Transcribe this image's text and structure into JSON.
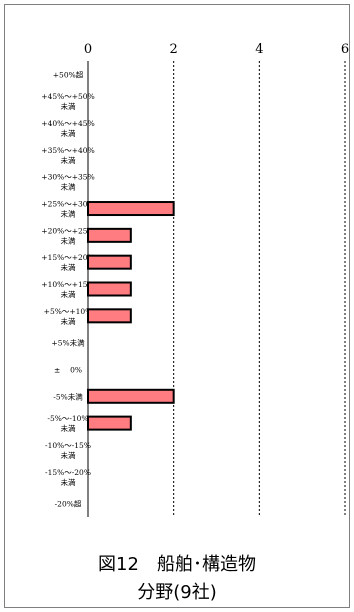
{
  "chart_data": {
    "type": "bar",
    "orientation": "horizontal",
    "categories": [
      [
        "+50%超"
      ],
      [
        "+45%～+50%",
        "未満"
      ],
      [
        "+40%～+45%",
        "未満"
      ],
      [
        "+35%～+40%",
        "未満"
      ],
      [
        "+30%～+35%",
        "未満"
      ],
      [
        "+25%～+30%",
        "未満"
      ],
      [
        "+20%～+25%",
        "未満"
      ],
      [
        "+15%～+20%",
        "未満"
      ],
      [
        "+10%～+15%",
        "未満"
      ],
      [
        "+5%～+10%",
        "未満"
      ],
      [
        "+5%未満"
      ],
      [
        "±　 0%"
      ],
      [
        "-5%未満"
      ],
      [
        "-5%～-10%",
        "未満"
      ],
      [
        "-10%～-15%",
        "未満"
      ],
      [
        "-15%～-20%",
        "未満"
      ],
      [
        "-20%超"
      ]
    ],
    "values": [
      0,
      0,
      0,
      0,
      0,
      2,
      1,
      1,
      1,
      1,
      0,
      0,
      2,
      1,
      0,
      0,
      0
    ],
    "xlim": [
      0,
      6
    ],
    "xticks": [
      0,
      2,
      4,
      6
    ],
    "grid": "vertical",
    "bar_color": "#ff7c80",
    "bar_edge_color": "#000000"
  },
  "caption": {
    "line1": "図12　船舶･構造物",
    "line2": "分野(9社)"
  }
}
